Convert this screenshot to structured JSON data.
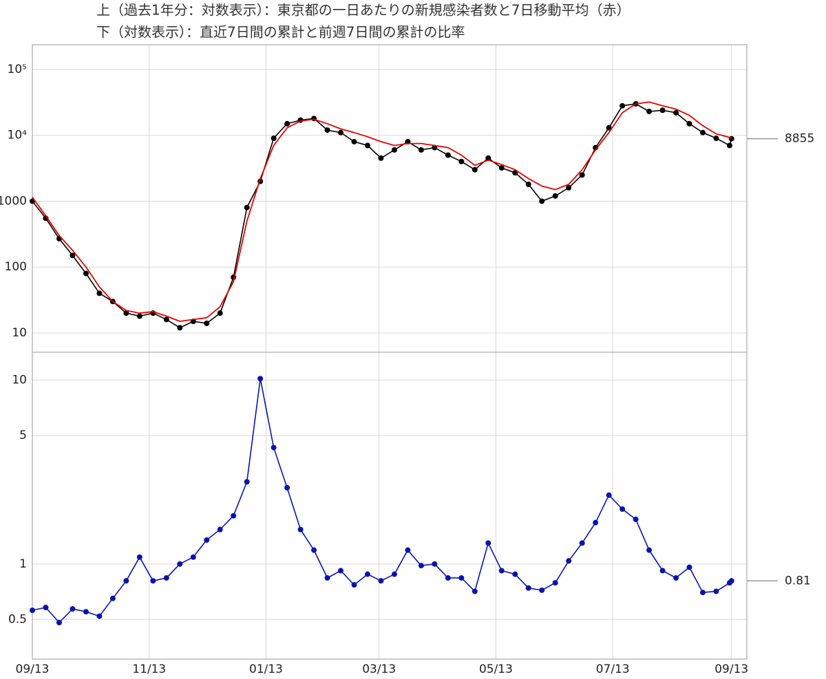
{
  "chart_data": [
    {
      "type": "line",
      "title": "上（過去1年分：対数表示）：東京都の一日あたりの新規感染者数と7日移動平均（赤）",
      "log_y": true,
      "grid": true,
      "x": [
        "09/13",
        "09/20",
        "09/27",
        "10/04",
        "10/11",
        "10/18",
        "10/25",
        "11/01",
        "11/08",
        "11/15",
        "11/22",
        "11/29",
        "12/06",
        "12/13",
        "12/20",
        "12/27",
        "01/03",
        "01/10",
        "01/17",
        "01/24",
        "01/31",
        "02/07",
        "02/14",
        "02/21",
        "02/28",
        "03/07",
        "03/14",
        "03/21",
        "03/28",
        "04/04",
        "04/11",
        "04/18",
        "04/25",
        "05/02",
        "05/09",
        "05/16",
        "05/23",
        "05/30",
        "06/06",
        "06/13",
        "06/20",
        "06/27",
        "07/04",
        "07/11",
        "07/18",
        "07/25",
        "08/01",
        "08/08",
        "08/15",
        "08/22",
        "08/29",
        "09/05",
        "09/12",
        "09/13"
      ],
      "xlim": [
        "09/13",
        "09/21"
      ],
      "ylim": [
        5.1,
        237000
      ],
      "yticks": [
        10,
        100,
        1000,
        {
          "value": 10000,
          "label": "10⁴"
        },
        {
          "value": 100000,
          "label": "10⁵"
        }
      ],
      "series": [
        {
          "color": "#000000",
          "markers": true,
          "end_label": true,
          "values": [
            1000,
            550,
            270,
            150,
            80,
            40,
            30,
            20,
            18,
            20,
            16,
            12,
            15,
            14,
            20,
            70,
            800,
            2000,
            9000,
            15000,
            17000,
            18000,
            12000,
            11000,
            8000,
            7000,
            4500,
            6000,
            8000,
            6000,
            6500,
            5000,
            4000,
            3000,
            4500,
            3200,
            2700,
            1800,
            1000,
            1200,
            1600,
            2500,
            6500,
            13000,
            28000,
            30000,
            23000,
            24000,
            22000,
            15000,
            11000,
            9000,
            7000,
            8855
          ]
        },
        {
          "color": "#e00000",
          "markers": false,
          "values": [
            1150,
            600,
            300,
            180,
            100,
            50,
            30,
            22,
            20,
            21,
            18,
            15,
            16,
            17,
            25,
            60,
            500,
            2200,
            7000,
            13000,
            16500,
            17500,
            15000,
            12500,
            11000,
            9500,
            8000,
            7000,
            7500,
            7500,
            7000,
            6500,
            5000,
            3500,
            4200,
            3600,
            3000,
            2200,
            1700,
            1500,
            1800,
            3000,
            6000,
            11000,
            22000,
            30000,
            32000,
            28000,
            25000,
            20000,
            14000,
            10500,
            9300,
            9000
          ]
        }
      ]
    },
    {
      "type": "line",
      "title": "下（対数表示）：直近7日間の累計と前週7日間の累計の比率",
      "log_y": true,
      "grid": true,
      "x": [
        "09/13",
        "09/20",
        "09/27",
        "10/04",
        "10/11",
        "10/18",
        "10/25",
        "11/01",
        "11/08",
        "11/15",
        "11/22",
        "11/29",
        "12/06",
        "12/13",
        "12/20",
        "12/27",
        "01/03",
        "01/10",
        "01/17",
        "01/24",
        "01/31",
        "02/07",
        "02/14",
        "02/21",
        "02/28",
        "03/07",
        "03/14",
        "03/21",
        "03/28",
        "04/04",
        "04/11",
        "04/18",
        "04/25",
        "05/02",
        "05/09",
        "05/16",
        "05/23",
        "05/30",
        "06/06",
        "06/13",
        "06/20",
        "06/27",
        "07/04",
        "07/11",
        "07/18",
        "07/25",
        "08/01",
        "08/08",
        "08/15",
        "08/22",
        "08/29",
        "09/05",
        "09/12",
        "09/13"
      ],
      "xlim": [
        "09/13",
        "09/21"
      ],
      "xticks": [
        "09/13",
        "11/13",
        "01/13",
        "03/13",
        "05/13",
        "07/13",
        "09/13"
      ],
      "ylim": [
        0.304,
        14.2
      ],
      "yticks": [
        0.5,
        1,
        5,
        10
      ],
      "series": [
        {
          "color": "#0a14a8",
          "markers": true,
          "end_label": true,
          "values": [
            0.56,
            0.58,
            0.48,
            0.57,
            0.55,
            0.52,
            0.65,
            0.81,
            1.09,
            0.81,
            0.84,
            1.0,
            1.09,
            1.35,
            1.54,
            1.83,
            2.8,
            10.2,
            4.3,
            2.6,
            1.54,
            1.19,
            0.84,
            0.92,
            0.77,
            0.88,
            0.81,
            0.88,
            1.19,
            0.98,
            1.0,
            0.84,
            0.84,
            0.71,
            1.3,
            0.92,
            0.88,
            0.74,
            0.72,
            0.79,
            1.04,
            1.3,
            1.68,
            2.37,
            1.99,
            1.75,
            1.19,
            0.92,
            0.84,
            0.96,
            0.7,
            0.71,
            0.79,
            0.81
          ]
        }
      ]
    }
  ]
}
